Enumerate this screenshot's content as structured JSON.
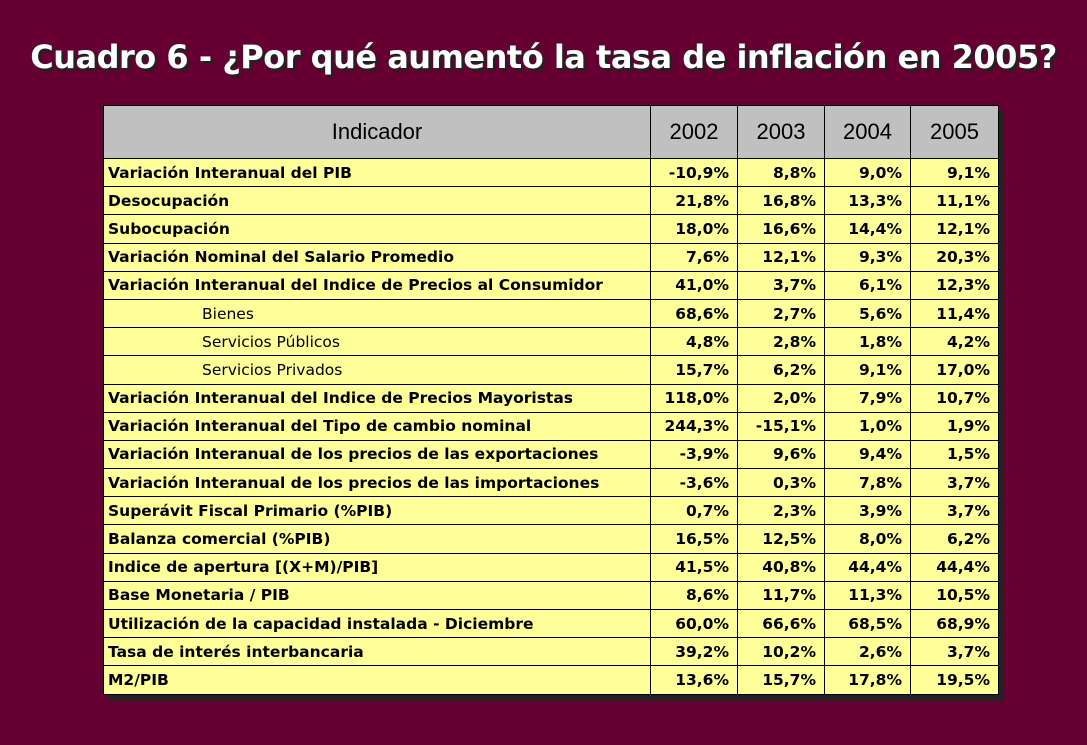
{
  "title": "Cuadro 6 - ¿Por qué aumentó la tasa de inflación en 2005?",
  "table": {
    "headers": [
      "Indicador",
      "2002",
      "2003",
      "2004",
      "2005"
    ],
    "rows": [
      {
        "label": "Variación Interanual del PIB",
        "values": [
          "-10,9%",
          "8,8%",
          "9,0%",
          "9,1%"
        ],
        "sub": false
      },
      {
        "label": "Desocupación",
        "values": [
          "21,8%",
          "16,8%",
          "13,3%",
          "11,1%"
        ],
        "sub": false
      },
      {
        "label": "Subocupación",
        "values": [
          "18,0%",
          "16,6%",
          "14,4%",
          "12,1%"
        ],
        "sub": false
      },
      {
        "label": "Variación Nominal del Salario Promedio",
        "values": [
          "7,6%",
          "12,1%",
          "9,3%",
          "20,3%"
        ],
        "sub": false
      },
      {
        "label": "Variación Interanual del Indice de Precios al Consumidor",
        "values": [
          "41,0%",
          "3,7%",
          "6,1%",
          "12,3%"
        ],
        "sub": false
      },
      {
        "label": "Bienes",
        "values": [
          "68,6%",
          "2,7%",
          "5,6%",
          "11,4%"
        ],
        "sub": true
      },
      {
        "label": "Servicios Públicos",
        "values": [
          "4,8%",
          "2,8%",
          "1,8%",
          "4,2%"
        ],
        "sub": true
      },
      {
        "label": "Servicios Privados",
        "values": [
          "15,7%",
          "6,2%",
          "9,1%",
          "17,0%"
        ],
        "sub": true
      },
      {
        "label": "Variación Interanual del Indice de Precios Mayoristas",
        "values": [
          "118,0%",
          "2,0%",
          "7,9%",
          "10,7%"
        ],
        "sub": false
      },
      {
        "label": "Variación Interanual del Tipo de cambio nominal",
        "values": [
          "244,3%",
          "-15,1%",
          "1,0%",
          "1,9%"
        ],
        "sub": false
      },
      {
        "label": "Variación Interanual de los precios de las exportaciones",
        "values": [
          "-3,9%",
          "9,6%",
          "9,4%",
          "1,5%"
        ],
        "sub": false
      },
      {
        "label": "Variación Interanual de los precios de las importaciones",
        "values": [
          "-3,6%",
          "0,3%",
          "7,8%",
          "3,7%"
        ],
        "sub": false
      },
      {
        "label": "Superávit Fiscal Primario (%PIB)",
        "values": [
          "0,7%",
          "2,3%",
          "3,9%",
          "3,7%"
        ],
        "sub": false
      },
      {
        "label": "Balanza comercial (%PIB)",
        "values": [
          "16,5%",
          "12,5%",
          "8,0%",
          "6,2%"
        ],
        "sub": false
      },
      {
        "label": "Indice de apertura [(X+M)/PIB]",
        "values": [
          "41,5%",
          "40,8%",
          "44,4%",
          "44,4%"
        ],
        "sub": false
      },
      {
        "label": "Base Monetaria / PIB",
        "values": [
          "8,6%",
          "11,7%",
          "11,3%",
          "10,5%"
        ],
        "sub": false
      },
      {
        "label": "Utilización de la capacidad instalada - Diciembre",
        "values": [
          "60,0%",
          "66,6%",
          "68,5%",
          "68,9%"
        ],
        "sub": false
      },
      {
        "label": "Tasa de interés interbancaria",
        "values": [
          "39,2%",
          "10,2%",
          "2,6%",
          "3,7%"
        ],
        "sub": false
      },
      {
        "label": "M2/PIB",
        "values": [
          "13,6%",
          "15,7%",
          "17,8%",
          "19,5%"
        ],
        "sub": false
      }
    ]
  },
  "colors": {
    "background": "#660033",
    "header_fill": "#c0c0c0",
    "cell_fill": "#ffff99"
  }
}
